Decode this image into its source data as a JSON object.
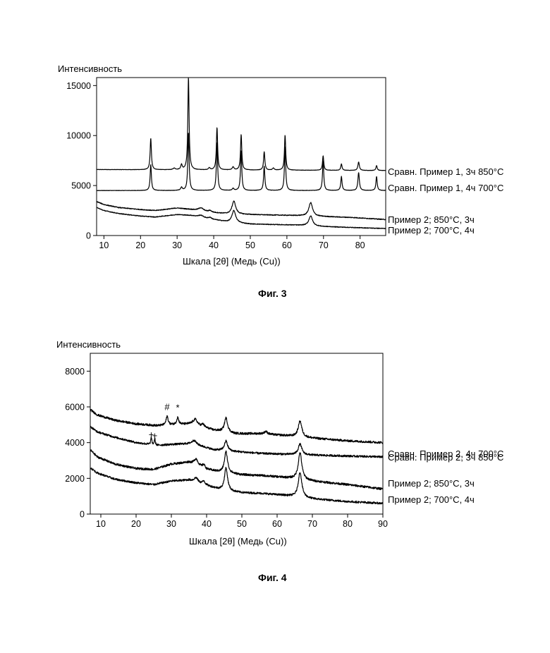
{
  "chart_data": [
    {
      "type": "line",
      "caption": "Фиг. 3",
      "ylabel": "Интенсивность",
      "xlabel": "Шкала [2θ] (Медь (Cu))",
      "xlim": [
        8,
        87
      ],
      "ylim": [
        0,
        15800
      ],
      "xticks": [
        10,
        20,
        30,
        40,
        50,
        60,
        70,
        80
      ],
      "yticks": [
        0,
        5000,
        10000,
        15000
      ],
      "grid": false,
      "legend": "series labels at right end of each line",
      "series": [
        {
          "name": "Сравн. Пример 1, 3ч 850°С",
          "base": [
            [
              8,
              6600
            ],
            [
              87,
              6500
            ]
          ],
          "noise": 15,
          "peaks": [
            [
              22.8,
              3150,
              0.3
            ],
            [
              29.2,
              150,
              0.5
            ],
            [
              31.2,
              500,
              0.35
            ],
            [
              33.1,
              9250,
              0.3
            ],
            [
              38.8,
              200,
              0.4
            ],
            [
              40.9,
              4250,
              0.3
            ],
            [
              45.3,
              300,
              0.4
            ],
            [
              47.5,
              3550,
              0.3
            ],
            [
              53.8,
              1850,
              0.3
            ],
            [
              56.3,
              200,
              0.4
            ],
            [
              59.5,
              3500,
              0.3
            ],
            [
              69.9,
              1450,
              0.3
            ],
            [
              74.9,
              650,
              0.3
            ],
            [
              79.6,
              850,
              0.35
            ],
            [
              84.5,
              500,
              0.3
            ]
          ]
        },
        {
          "name": "Сравн. Пример 1, 4ч 700°С",
          "base": [
            [
              8,
              4500
            ],
            [
              87,
              4500
            ]
          ],
          "noise": 15,
          "peaks": [
            [
              22.8,
              2600,
              0.3
            ],
            [
              31.2,
              300,
              0.4
            ],
            [
              33.1,
              5800,
              0.3
            ],
            [
              40.9,
              4800,
              0.3
            ],
            [
              45.3,
              200,
              0.4
            ],
            [
              47.5,
              4000,
              0.3
            ],
            [
              53.8,
              2450,
              0.3
            ],
            [
              59.5,
              4400,
              0.3
            ],
            [
              69.9,
              3000,
              0.3
            ],
            [
              74.9,
              1400,
              0.3
            ],
            [
              79.6,
              1800,
              0.35
            ],
            [
              84.5,
              1400,
              0.3
            ]
          ]
        },
        {
          "name": "Пример 2; 850°С, 3ч",
          "base": [
            [
              8,
              3400
            ],
            [
              10,
              3100
            ],
            [
              14,
              2800
            ],
            [
              20,
              2600
            ],
            [
              24,
              2500
            ],
            [
              30,
              2750
            ],
            [
              34,
              2600
            ],
            [
              40,
              2300
            ],
            [
              44,
              2150
            ],
            [
              50,
              2100
            ],
            [
              56,
              2050
            ],
            [
              62,
              2000
            ],
            [
              70,
              1900
            ],
            [
              78,
              1800
            ],
            [
              87,
              1600
            ]
          ],
          "noise": 40,
          "peaks": [
            [
              36.5,
              300,
              1.2
            ],
            [
              39,
              150,
              0.6
            ],
            [
              45.5,
              1300,
              0.9
            ],
            [
              66.5,
              1350,
              0.9
            ]
          ]
        },
        {
          "name": "Пример 2; 700°С, 4ч",
          "base": [
            [
              8,
              2800
            ],
            [
              10,
              2500
            ],
            [
              14,
              2200
            ],
            [
              20,
              1950
            ],
            [
              24,
              1850
            ],
            [
              30,
              2100
            ],
            [
              34,
              2000
            ],
            [
              40,
              1600
            ],
            [
              44,
              1350
            ],
            [
              50,
              1150
            ],
            [
              56,
              1100
            ],
            [
              62,
              1050
            ],
            [
              70,
              900
            ],
            [
              78,
              800
            ],
            [
              87,
              700
            ]
          ],
          "noise": 35,
          "peaks": [
            [
              36.5,
              200,
              1.2
            ],
            [
              39,
              150,
              0.6
            ],
            [
              45.5,
              1200,
              0.9
            ],
            [
              66.5,
              1000,
              0.9
            ]
          ]
        }
      ]
    },
    {
      "type": "line",
      "caption": "Фиг. 4",
      "ylabel": "Интенсивность",
      "xlabel": "Шкала [2θ] (Медь (Cu))",
      "xlim": [
        7,
        90
      ],
      "ylim": [
        0,
        9000
      ],
      "xticks": [
        10,
        20,
        30,
        40,
        50,
        60,
        70,
        80,
        90
      ],
      "yticks": [
        0,
        2000,
        4000,
        6000,
        8000
      ],
      "grid": false,
      "legend": "series labels at right end of each line",
      "annotations": [
        {
          "text": "#",
          "x": 28.8,
          "y": 5820
        },
        {
          "text": "*",
          "x": 31.8,
          "y": 5780
        },
        {
          "text": "+",
          "x": 24.3,
          "y": 4280
        },
        {
          "text": "+",
          "x": 25.3,
          "y": 4220
        }
      ],
      "series": [
        {
          "name": "Сравн. Пример 2, 3ч 850°С",
          "base": [
            [
              7,
              5850
            ],
            [
              9,
              5550
            ],
            [
              14,
              5250
            ],
            [
              20,
              5050
            ],
            [
              26,
              4950
            ],
            [
              30,
              5000
            ],
            [
              36,
              5050
            ],
            [
              42,
              4700
            ],
            [
              48,
              4500
            ],
            [
              55,
              4500
            ],
            [
              62,
              4400
            ],
            [
              70,
              4250
            ],
            [
              80,
              4100
            ],
            [
              90,
              4000
            ]
          ],
          "noise": 60,
          "peaks": [
            [
              28.8,
              500,
              0.5
            ],
            [
              31.8,
              400,
              0.5
            ],
            [
              36.8,
              300,
              1.0
            ],
            [
              39,
              150,
              0.6
            ],
            [
              45.5,
              800,
              0.8
            ],
            [
              56.8,
              150,
              0.8
            ],
            [
              66.5,
              900,
              0.9
            ]
          ]
        },
        {
          "name": "Сравн. Пример 2, 4ч 700°С",
          "base": [
            [
              7,
              4900
            ],
            [
              9,
              4600
            ],
            [
              14,
              4300
            ],
            [
              20,
              4000
            ],
            [
              26,
              3850
            ],
            [
              30,
              3900
            ],
            [
              36,
              3950
            ],
            [
              42,
              3600
            ],
            [
              48,
              3500
            ],
            [
              55,
              3400
            ],
            [
              62,
              3350
            ],
            [
              70,
              3300
            ],
            [
              80,
              3250
            ],
            [
              90,
              3200
            ]
          ],
          "noise": 55,
          "peaks": [
            [
              24.3,
              400,
              0.25
            ],
            [
              25.3,
              350,
              0.25
            ],
            [
              36.5,
              200,
              1.0
            ],
            [
              45.5,
              550,
              0.8
            ],
            [
              66.5,
              600,
              0.9
            ]
          ]
        },
        {
          "name": "Пример 2; 850°С, 3ч",
          "base": [
            [
              7,
              3600
            ],
            [
              9,
              3200
            ],
            [
              14,
              2800
            ],
            [
              20,
              2550
            ],
            [
              25,
              2500
            ],
            [
              30,
              2800
            ],
            [
              35,
              2900
            ],
            [
              40,
              2500
            ],
            [
              45,
              2300
            ],
            [
              50,
              2200
            ],
            [
              56,
              2150
            ],
            [
              62,
              2050
            ],
            [
              70,
              1850
            ],
            [
              80,
              1650
            ],
            [
              90,
              1400
            ]
          ],
          "noise": 60,
          "peaks": [
            [
              37,
              350,
              1.0
            ],
            [
              39.2,
              200,
              0.6
            ],
            [
              45.5,
              1200,
              0.8
            ],
            [
              66.5,
              1500,
              0.9
            ]
          ]
        },
        {
          "name": "Пример 2; 700°С, 4ч",
          "base": [
            [
              7,
              2600
            ],
            [
              9,
              2300
            ],
            [
              14,
              1950
            ],
            [
              20,
              1750
            ],
            [
              25,
              1650
            ],
            [
              30,
              1850
            ],
            [
              35,
              1900
            ],
            [
              40,
              1600
            ],
            [
              45,
              1300
            ],
            [
              50,
              1200
            ],
            [
              56,
              1150
            ],
            [
              62,
              1050
            ],
            [
              70,
              850
            ],
            [
              80,
              700
            ],
            [
              90,
              600
            ]
          ],
          "noise": 55,
          "peaks": [
            [
              37,
              250,
              1.0
            ],
            [
              39.2,
              200,
              0.6
            ],
            [
              45.5,
              1300,
              0.8
            ],
            [
              66.5,
              1400,
              0.9
            ]
          ]
        }
      ]
    }
  ]
}
